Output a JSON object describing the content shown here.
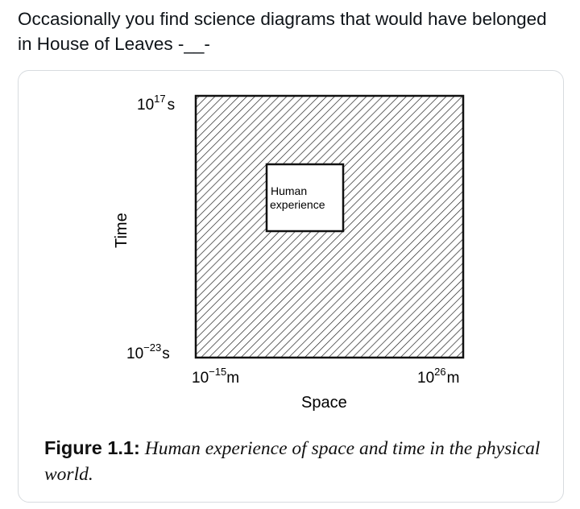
{
  "post": {
    "text": "Occasionally you find science diagrams that would have belonged in House of Leaves -__-"
  },
  "diagram": {
    "y_axis_label": "Time",
    "x_axis_label": "Space",
    "y_max_label": {
      "base": "10",
      "exp": "17",
      "unit": "s"
    },
    "y_min_label": {
      "base": "10",
      "exp": "−23",
      "unit": "s"
    },
    "x_min_label": {
      "base": "10",
      "exp": "−15",
      "unit": "m"
    },
    "x_max_label": {
      "base": "10",
      "exp": "26",
      "unit": "m"
    },
    "inner_box_label_line1": "Human",
    "inner_box_label_line2": "experience",
    "outer_fill": "diagonal hatching"
  },
  "caption": {
    "label": "Figure 1.1:",
    "text": "Human experience of space and time in the physical world."
  }
}
